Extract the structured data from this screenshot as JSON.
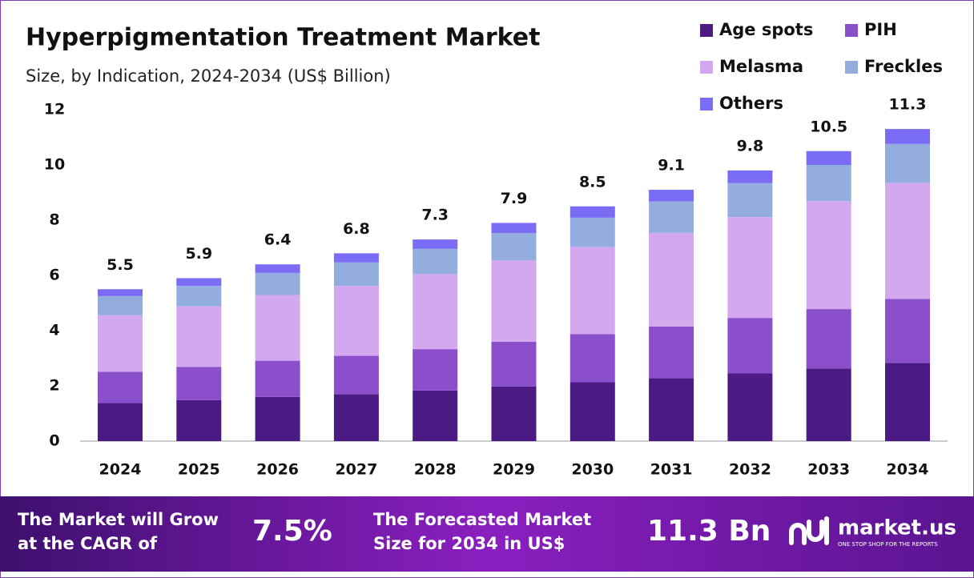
{
  "chart_data": {
    "type": "bar",
    "stacked": true,
    "title": "Hyperpigmentation Treatment Market",
    "subtitle": "Size, by Indication, 2024-2034 (US$ Billion)",
    "categories": [
      "2024",
      "2025",
      "2026",
      "2027",
      "2028",
      "2029",
      "2030",
      "2031",
      "2032",
      "2033",
      "2034"
    ],
    "series": [
      {
        "name": "Age spots",
        "color": "#4b1a82",
        "values": [
          1.38,
          1.48,
          1.6,
          1.7,
          1.83,
          1.98,
          2.13,
          2.28,
          2.45,
          2.63,
          2.83
        ]
      },
      {
        "name": "PIH",
        "color": "#8c4fcc",
        "values": [
          1.13,
          1.21,
          1.31,
          1.39,
          1.5,
          1.62,
          1.74,
          1.87,
          2.01,
          2.15,
          2.32
        ]
      },
      {
        "name": "Melasma",
        "color": "#d4a8ee",
        "values": [
          2.05,
          2.19,
          2.38,
          2.53,
          2.72,
          2.94,
          3.16,
          3.39,
          3.65,
          3.91,
          4.2
        ]
      },
      {
        "name": "Freckles",
        "color": "#93aede",
        "values": [
          0.69,
          0.74,
          0.8,
          0.85,
          0.91,
          0.99,
          1.06,
          1.14,
          1.23,
          1.31,
          1.41
        ]
      },
      {
        "name": "Others",
        "color": "#7a6cf4",
        "values": [
          0.25,
          0.28,
          0.31,
          0.33,
          0.34,
          0.37,
          0.41,
          0.42,
          0.46,
          0.5,
          0.54
        ]
      }
    ],
    "totals": [
      5.5,
      5.9,
      6.4,
      6.8,
      7.3,
      7.9,
      8.5,
      9.1,
      9.8,
      10.5,
      11.3
    ],
    "ylim": [
      0,
      12
    ],
    "yticks": [
      0,
      2,
      4,
      6,
      8,
      10,
      12
    ],
    "grid": false
  },
  "footer": {
    "cagr_text": [
      "The Market will Grow",
      "at the CAGR of"
    ],
    "cagr": "7.5%",
    "forecast_text": [
      "The Forecasted Market",
      "Size for 2034 in US$"
    ],
    "forecast": "11.3 Bn",
    "logo": "market.us",
    "tagline": "ONE STOP SHOP FOR THE REPORTS"
  }
}
